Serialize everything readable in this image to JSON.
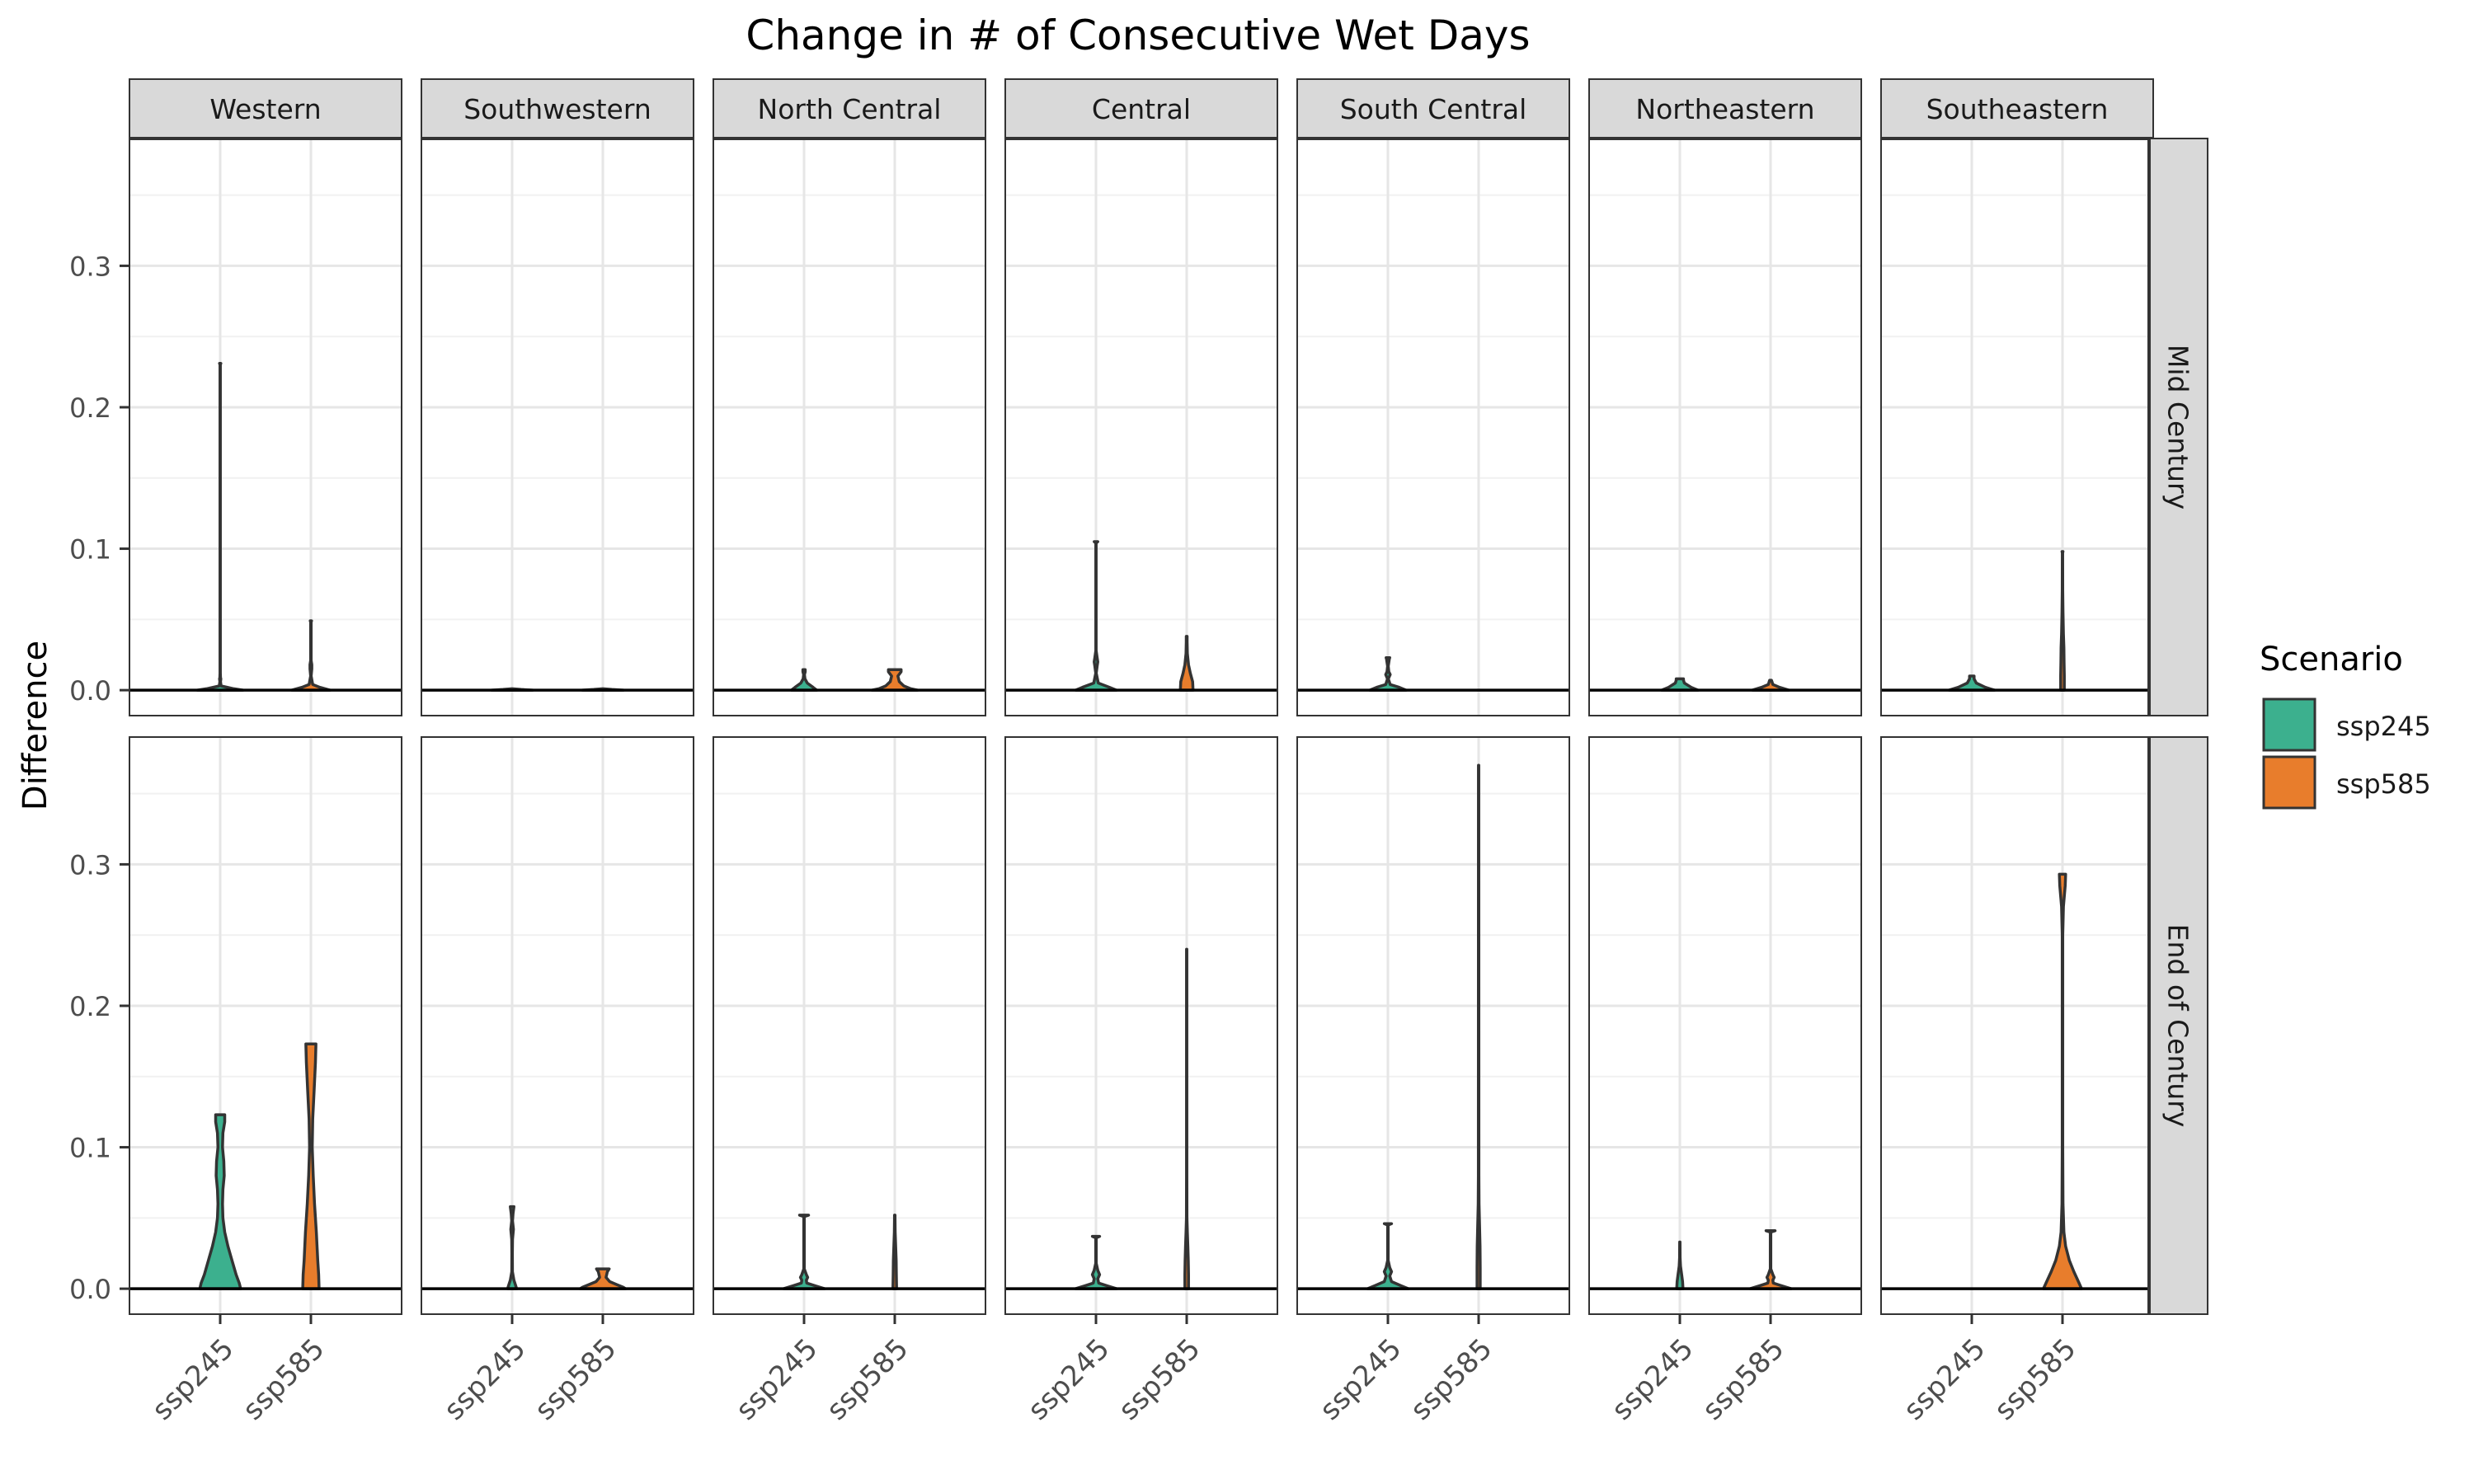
{
  "chart_data": {
    "type": "violin",
    "title": "Change in # of Consecutive Wet Days",
    "ylabel": "Difference",
    "xlabel": "",
    "ylim": [
      -0.018,
      0.39
    ],
    "y_ticks": [
      0.0,
      0.1,
      0.2,
      0.3
    ],
    "y_tick_labels": [
      "0.0",
      "0.1",
      "0.2",
      "0.3"
    ],
    "x_categories": [
      "ssp245",
      "ssp585"
    ],
    "columns": [
      "Western",
      "Southwestern",
      "North Central",
      "Central",
      "South Central",
      "Northeastern",
      "Southeastern"
    ],
    "rows": [
      "Mid Century",
      "End of Century"
    ],
    "grid": true,
    "legend": {
      "title": "Scenario",
      "placement": "right",
      "entries": [
        {
          "name": "ssp245",
          "color": "#3CB08E"
        },
        {
          "name": "ssp585",
          "color": "#E87D2C"
        }
      ]
    },
    "violins": [
      {
        "row": "Mid Century",
        "column": "Western",
        "scenario": "ssp245",
        "profile": [
          [
            0,
            0.5
          ],
          [
            0.001,
            0.3
          ],
          [
            0.003,
            0.02
          ],
          [
            0.006,
            0.008
          ],
          [
            0.008,
            0.015
          ],
          [
            0.009,
            0.008
          ],
          [
            0.012,
            0.004
          ],
          [
            0.23,
            0.004
          ],
          [
            0.231,
            0.015
          ]
        ]
      },
      {
        "row": "Mid Century",
        "column": "Western",
        "scenario": "ssp585",
        "profile": [
          [
            0,
            0.42
          ],
          [
            0.002,
            0.2
          ],
          [
            0.004,
            0.04
          ],
          [
            0.01,
            0.005
          ],
          [
            0.015,
            0.02
          ],
          [
            0.018,
            0.02
          ],
          [
            0.021,
            0.005
          ],
          [
            0.048,
            0.005
          ],
          [
            0.049,
            0.015
          ]
        ]
      },
      {
        "row": "Mid Century",
        "column": "Southwestern",
        "scenario": "ssp245",
        "profile": [
          [
            0,
            0.45
          ],
          [
            0.0005,
            0.2
          ],
          [
            0.001,
            0.0
          ]
        ]
      },
      {
        "row": "Mid Century",
        "column": "Southwestern",
        "scenario": "ssp585",
        "profile": [
          [
            0,
            0.45
          ],
          [
            0.0005,
            0.2
          ],
          [
            0.001,
            0.0
          ]
        ]
      },
      {
        "row": "Mid Century",
        "column": "North Central",
        "scenario": "ssp245",
        "profile": [
          [
            0,
            0.28
          ],
          [
            0.002,
            0.2
          ],
          [
            0.005,
            0.07
          ],
          [
            0.008,
            0.02
          ],
          [
            0.011,
            0.01
          ],
          [
            0.013,
            0.025
          ],
          [
            0.0145,
            0.025
          ]
        ]
      },
      {
        "row": "Mid Century",
        "column": "North Central",
        "scenario": "ssp585",
        "profile": [
          [
            0,
            0.5
          ],
          [
            0.001,
            0.35
          ],
          [
            0.003,
            0.2
          ],
          [
            0.006,
            0.1
          ],
          [
            0.01,
            0.07
          ],
          [
            0.013,
            0.14
          ],
          [
            0.0145,
            0.14
          ]
        ]
      },
      {
        "row": "Mid Century",
        "column": "Central",
        "scenario": "ssp245",
        "profile": [
          [
            0,
            0.45
          ],
          [
            0.002,
            0.3
          ],
          [
            0.005,
            0.05
          ],
          [
            0.012,
            0.005
          ],
          [
            0.017,
            0.025
          ],
          [
            0.02,
            0.04
          ],
          [
            0.023,
            0.025
          ],
          [
            0.028,
            0.004
          ],
          [
            0.104,
            0.004
          ],
          [
            0.105,
            0.04
          ]
        ]
      },
      {
        "row": "Mid Century",
        "column": "Central",
        "scenario": "ssp585",
        "profile": [
          [
            0,
            0.14
          ],
          [
            0.006,
            0.13
          ],
          [
            0.012,
            0.08
          ],
          [
            0.018,
            0.04
          ],
          [
            0.026,
            0.015
          ],
          [
            0.034,
            0.01
          ],
          [
            0.038,
            0.01
          ]
        ]
      },
      {
        "row": "Mid Century",
        "column": "South Central",
        "scenario": "ssp245",
        "profile": [
          [
            0,
            0.4
          ],
          [
            0.002,
            0.25
          ],
          [
            0.004,
            0.05
          ],
          [
            0.008,
            0.01
          ],
          [
            0.011,
            0.05
          ],
          [
            0.013,
            0.02
          ],
          [
            0.017,
            0.008
          ],
          [
            0.022,
            0.03
          ],
          [
            0.023,
            0.04
          ]
        ]
      },
      {
        "row": "Mid Century",
        "column": "South Central",
        "scenario": "ssp585",
        "profile": [
          [
            0,
            0.0
          ]
        ]
      },
      {
        "row": "Mid Century",
        "column": "Northeastern",
        "scenario": "ssp245",
        "profile": [
          [
            0,
            0.4
          ],
          [
            0.002,
            0.25
          ],
          [
            0.005,
            0.1
          ],
          [
            0.007,
            0.08
          ],
          [
            0.008,
            0.08
          ]
        ]
      },
      {
        "row": "Mid Century",
        "column": "Northeastern",
        "scenario": "ssp585",
        "profile": [
          [
            0,
            0.4
          ],
          [
            0.002,
            0.2
          ],
          [
            0.004,
            0.05
          ],
          [
            0.006,
            0.03
          ],
          [
            0.007,
            0.02
          ]
        ]
      },
      {
        "row": "Mid Century",
        "column": "Southeastern",
        "scenario": "ssp245",
        "profile": [
          [
            0,
            0.5
          ],
          [
            0.002,
            0.3
          ],
          [
            0.005,
            0.1
          ],
          [
            0.008,
            0.05
          ],
          [
            0.01,
            0.05
          ]
        ]
      },
      {
        "row": "Mid Century",
        "column": "Southeastern",
        "scenario": "ssp585",
        "profile": [
          [
            0,
            0.04
          ],
          [
            0.01,
            0.04
          ],
          [
            0.02,
            0.035
          ],
          [
            0.03,
            0.03
          ],
          [
            0.04,
            0.02
          ],
          [
            0.055,
            0.01
          ],
          [
            0.07,
            0.005
          ],
          [
            0.097,
            0.004
          ],
          [
            0.098,
            0.01
          ]
        ]
      },
      {
        "row": "End of Century",
        "column": "Western",
        "scenario": "ssp245",
        "profile": [
          [
            0,
            0.45
          ],
          [
            0.004,
            0.42
          ],
          [
            0.01,
            0.35
          ],
          [
            0.02,
            0.26
          ],
          [
            0.03,
            0.17
          ],
          [
            0.04,
            0.1
          ],
          [
            0.05,
            0.06
          ],
          [
            0.06,
            0.05
          ],
          [
            0.07,
            0.06
          ],
          [
            0.08,
            0.09
          ],
          [
            0.09,
            0.08
          ],
          [
            0.1,
            0.05
          ],
          [
            0.11,
            0.06
          ],
          [
            0.118,
            0.1
          ],
          [
            0.123,
            0.1
          ]
        ]
      },
      {
        "row": "End of Century",
        "column": "Western",
        "scenario": "ssp585",
        "profile": [
          [
            0,
            0.18
          ],
          [
            0.01,
            0.17
          ],
          [
            0.02,
            0.15
          ],
          [
            0.04,
            0.12
          ],
          [
            0.06,
            0.08
          ],
          [
            0.08,
            0.05
          ],
          [
            0.1,
            0.03
          ],
          [
            0.12,
            0.04
          ],
          [
            0.14,
            0.07
          ],
          [
            0.16,
            0.1
          ],
          [
            0.173,
            0.11
          ]
        ]
      },
      {
        "row": "End of Century",
        "column": "Southwestern",
        "scenario": "ssp245",
        "profile": [
          [
            0,
            0.1
          ],
          [
            0.003,
            0.07
          ],
          [
            0.006,
            0.04
          ],
          [
            0.012,
            0.008
          ],
          [
            0.025,
            0.006
          ],
          [
            0.035,
            0.01
          ],
          [
            0.042,
            0.03
          ],
          [
            0.048,
            0.01
          ],
          [
            0.053,
            0.02
          ],
          [
            0.058,
            0.04
          ]
        ]
      },
      {
        "row": "End of Century",
        "column": "Southwestern",
        "scenario": "ssp585",
        "profile": [
          [
            0,
            0.5
          ],
          [
            0.001,
            0.45
          ],
          [
            0.003,
            0.3
          ],
          [
            0.005,
            0.15
          ],
          [
            0.008,
            0.07
          ],
          [
            0.012,
            0.1
          ],
          [
            0.014,
            0.14
          ]
        ]
      },
      {
        "row": "End of Century",
        "column": "North Central",
        "scenario": "ssp245",
        "profile": [
          [
            0,
            0.45
          ],
          [
            0.002,
            0.25
          ],
          [
            0.004,
            0.06
          ],
          [
            0.006,
            0.05
          ],
          [
            0.008,
            0.08
          ],
          [
            0.01,
            0.05
          ],
          [
            0.014,
            0.005
          ],
          [
            0.051,
            0.005
          ],
          [
            0.052,
            0.1
          ]
        ]
      },
      {
        "row": "End of Century",
        "column": "North Central",
        "scenario": "ssp585",
        "profile": [
          [
            0,
            0.04
          ],
          [
            0.01,
            0.035
          ],
          [
            0.02,
            0.03
          ],
          [
            0.03,
            0.02
          ],
          [
            0.04,
            0.01
          ],
          [
            0.05,
            0.005
          ],
          [
            0.052,
            0.005
          ]
        ]
      },
      {
        "row": "End of Century",
        "column": "Central",
        "scenario": "ssp245",
        "profile": [
          [
            0,
            0.45
          ],
          [
            0.002,
            0.25
          ],
          [
            0.004,
            0.06
          ],
          [
            0.007,
            0.04
          ],
          [
            0.01,
            0.08
          ],
          [
            0.013,
            0.04
          ],
          [
            0.018,
            0.005
          ],
          [
            0.036,
            0.005
          ],
          [
            0.037,
            0.08
          ]
        ]
      },
      {
        "row": "End of Century",
        "column": "Central",
        "scenario": "ssp585",
        "profile": [
          [
            0,
            0.04
          ],
          [
            0.01,
            0.04
          ],
          [
            0.02,
            0.035
          ],
          [
            0.03,
            0.025
          ],
          [
            0.04,
            0.015
          ],
          [
            0.05,
            0.006
          ],
          [
            0.08,
            0.004
          ],
          [
            0.24,
            0.004
          ]
        ]
      },
      {
        "row": "End of Century",
        "column": "South Central",
        "scenario": "ssp245",
        "profile": [
          [
            0,
            0.45
          ],
          [
            0.002,
            0.3
          ],
          [
            0.005,
            0.08
          ],
          [
            0.009,
            0.04
          ],
          [
            0.012,
            0.08
          ],
          [
            0.015,
            0.04
          ],
          [
            0.02,
            0.005
          ],
          [
            0.045,
            0.005
          ],
          [
            0.046,
            0.08
          ]
        ]
      },
      {
        "row": "End of Century",
        "column": "South Central",
        "scenario": "ssp585",
        "profile": [
          [
            0,
            0.035
          ],
          [
            0.015,
            0.035
          ],
          [
            0.03,
            0.03
          ],
          [
            0.045,
            0.02
          ],
          [
            0.06,
            0.01
          ],
          [
            0.08,
            0.005
          ],
          [
            0.37,
            0.004
          ]
        ]
      },
      {
        "row": "End of Century",
        "column": "Northeastern",
        "scenario": "ssp245",
        "profile": [
          [
            0,
            0.07
          ],
          [
            0.005,
            0.06
          ],
          [
            0.01,
            0.04
          ],
          [
            0.016,
            0.015
          ],
          [
            0.022,
            0.005
          ],
          [
            0.033,
            0.003
          ]
        ]
      },
      {
        "row": "End of Century",
        "column": "Northeastern",
        "scenario": "ssp585",
        "profile": [
          [
            0,
            0.45
          ],
          [
            0.002,
            0.25
          ],
          [
            0.004,
            0.06
          ],
          [
            0.006,
            0.05
          ],
          [
            0.008,
            0.08
          ],
          [
            0.01,
            0.05
          ],
          [
            0.014,
            0.005
          ],
          [
            0.04,
            0.005
          ],
          [
            0.041,
            0.1
          ]
        ]
      },
      {
        "row": "End of Century",
        "column": "Southeastern",
        "scenario": "ssp245",
        "profile": [
          [
            0,
            0.0
          ]
        ]
      },
      {
        "row": "End of Century",
        "column": "Southeastern",
        "scenario": "ssp585",
        "profile": [
          [
            0,
            0.42
          ],
          [
            0.005,
            0.35
          ],
          [
            0.012,
            0.25
          ],
          [
            0.02,
            0.15
          ],
          [
            0.03,
            0.07
          ],
          [
            0.04,
            0.03
          ],
          [
            0.06,
            0.01
          ],
          [
            0.1,
            0.005
          ],
          [
            0.25,
            0.005
          ],
          [
            0.27,
            0.02
          ],
          [
            0.285,
            0.06
          ],
          [
            0.293,
            0.07
          ]
        ]
      }
    ]
  }
}
